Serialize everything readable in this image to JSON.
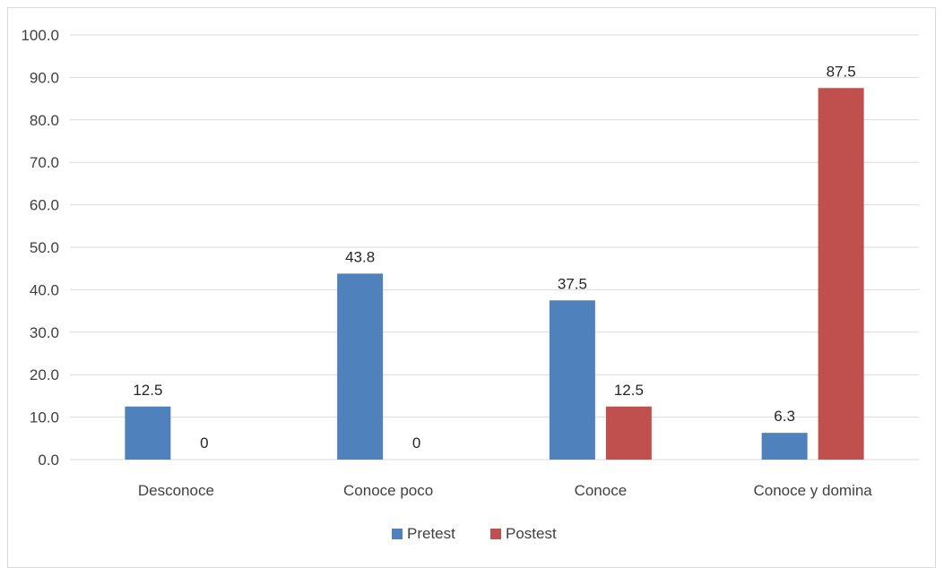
{
  "chart_data": {
    "type": "bar",
    "title": "",
    "xlabel": "",
    "ylabel": "",
    "categories": [
      "Desconoce",
      "Conoce poco",
      "Conoce",
      "Conoce y domina"
    ],
    "series": [
      {
        "name": "Pretest",
        "color": "#4f81bd",
        "values": [
          12.5,
          43.8,
          37.5,
          6.3
        ],
        "labels": [
          "12.5",
          "43.8",
          "37.5",
          "6.3"
        ]
      },
      {
        "name": "Postest",
        "color": "#c0504d",
        "values": [
          0,
          0,
          12.5,
          87.5
        ],
        "labels": [
          "0",
          "0",
          "12.5",
          "87.5"
        ]
      }
    ],
    "ylim": [
      0,
      100
    ],
    "yticks": [
      "0.0",
      "10.0",
      "20.0",
      "30.0",
      "40.0",
      "50.0",
      "60.0",
      "70.0",
      "80.0",
      "90.0",
      "100.0"
    ],
    "grid": true,
    "legend_position": "bottom"
  }
}
